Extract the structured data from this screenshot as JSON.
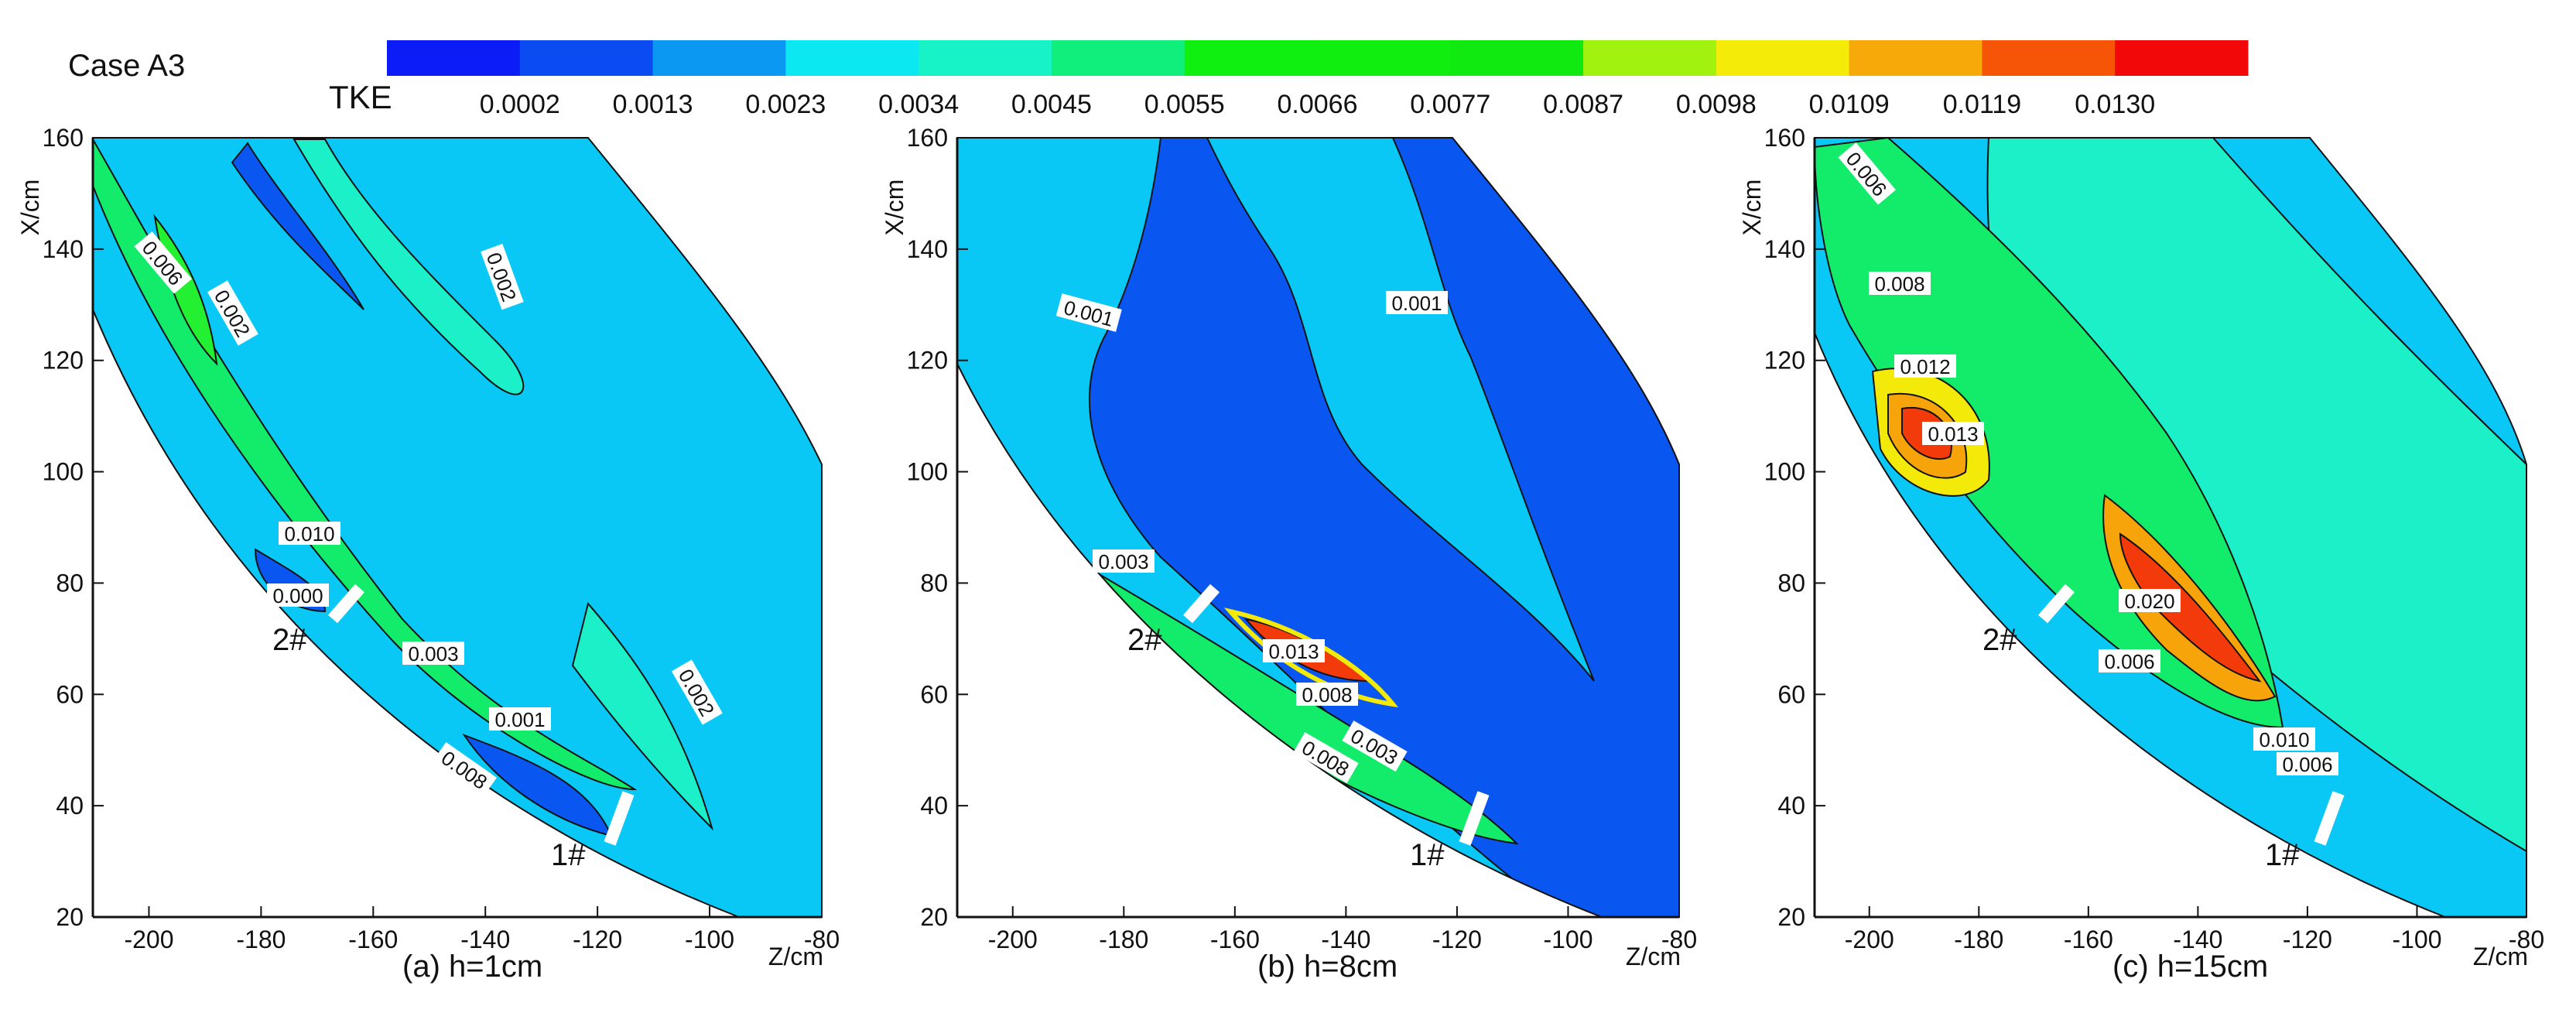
{
  "figure": {
    "case_label": "Case A3",
    "colorbar_label": "TKE"
  },
  "colors": {
    "levels": [
      "#0b1cf7",
      "#0b4cf2",
      "#0b98f2",
      "#0be8f2",
      "#17f2c6",
      "#10ef7c",
      "#10f010",
      "#10ee10",
      "#10ea10",
      "#a2f210",
      "#f4ec08",
      "#f6a908",
      "#f65508",
      "#f20808"
    ],
    "low": "#0a56f0",
    "mid": "#09c8f5",
    "cyan_green": "#1bf0c8",
    "green": "#13ec6a",
    "green2": "#23f030",
    "yellow": "#f4ea0a",
    "orange": "#f6a40a",
    "red": "#f23a0a"
  },
  "chart_data": [
    {
      "type": "contour",
      "title": "(a) h=1cm",
      "xlabel": "Z/cm",
      "ylabel": "X/cm",
      "xlim": [
        -210,
        -80
      ],
      "ylim": [
        20,
        160
      ],
      "xticks": [
        "-200",
        "-180",
        "-160",
        "-140",
        "-120",
        "-100",
        "-80"
      ],
      "yticks": [
        "20",
        "40",
        "60",
        "80",
        "100",
        "120",
        "140",
        "160"
      ],
      "colorbar_ticks": [
        "0.0002",
        "0.0013",
        "0.0023",
        "0.0034",
        "0.0045",
        "0.0055",
        "0.0066",
        "0.0077",
        "0.0087",
        "0.0098",
        "0.0109",
        "0.0119",
        "0.0130"
      ],
      "markers": [
        {
          "label": "2#",
          "z": -165,
          "x": 75
        },
        {
          "label": "1#",
          "z": -118,
          "x": 38
        }
      ],
      "annotations": [
        "0.006",
        "0.002",
        "0.002",
        "0.010",
        "0.000",
        "0.003",
        "0.002",
        "0.001",
        "0.008"
      ]
    },
    {
      "type": "contour",
      "title": "(b) h=8cm",
      "xlabel": "Z/cm",
      "ylabel": "X/cm",
      "xlim": [
        -210,
        -80
      ],
      "ylim": [
        20,
        160
      ],
      "xticks": [
        "-200",
        "-180",
        "-160",
        "-140",
        "-120",
        "-100",
        "-80"
      ],
      "yticks": [
        "20",
        "40",
        "60",
        "80",
        "100",
        "120",
        "140",
        "160"
      ],
      "markers": [
        {
          "label": "2#",
          "z": -165,
          "x": 75
        },
        {
          "label": "1#",
          "z": -118,
          "x": 38
        }
      ],
      "annotations": [
        "0.001",
        "0.001",
        "0.003",
        "0.013",
        "0.008",
        "0.003",
        "0.008"
      ]
    },
    {
      "type": "contour",
      "title": "(c) h=15cm",
      "xlabel": "Z/cm",
      "ylabel": "X/cm",
      "xlim": [
        -210,
        -80
      ],
      "ylim": [
        20,
        160
      ],
      "xticks": [
        "-200",
        "-180",
        "-160",
        "-140",
        "-120",
        "-100",
        "-80"
      ],
      "yticks": [
        "20",
        "40",
        "60",
        "80",
        "100",
        "120",
        "140",
        "160"
      ],
      "markers": [
        {
          "label": "2#",
          "z": -165,
          "x": 75
        },
        {
          "label": "1#",
          "z": -118,
          "x": 38
        }
      ],
      "annotations": [
        "0.006",
        "0.008",
        "0.012",
        "0.013",
        "0.020",
        "0.006",
        "0.010",
        "0.006"
      ]
    }
  ]
}
